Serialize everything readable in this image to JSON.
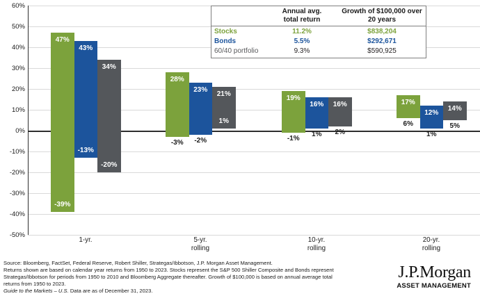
{
  "colors": {
    "stocks_green": "#7CA23C",
    "bonds_blue": "#1C549C",
    "portfolio_gray": "#54575B",
    "gridline": "#D9D9D9",
    "axis_line": "#2E2E2E",
    "bar_label_inside": "#FFFFFF",
    "bar_label_outside": "#1A1A1A"
  },
  "chart_data": {
    "type": "bar",
    "subtype": "floating-range-bars",
    "description": "Range of total returns (max and min) for Stocks, Bonds and a 60/40 portfolio over 1-yr, 5-yr rolling, 10-yr rolling and 20-yr rolling periods, 1950-2023",
    "ylabel": "",
    "xlabel": "",
    "ylim": [
      -50,
      60
    ],
    "grid": true,
    "y_ticks": [
      {
        "v": 60,
        "label": "60%"
      },
      {
        "v": 50,
        "label": "50%"
      },
      {
        "v": 40,
        "label": "40%"
      },
      {
        "v": 30,
        "label": "30%"
      },
      {
        "v": 20,
        "label": "20%"
      },
      {
        "v": 10,
        "label": "10%"
      },
      {
        "v": 0,
        "label": "0%"
      },
      {
        "v": -10,
        "label": "-10%"
      },
      {
        "v": -20,
        "label": "-20%"
      },
      {
        "v": -30,
        "label": "-30%"
      },
      {
        "v": -40,
        "label": "-40%"
      },
      {
        "v": -50,
        "label": "-50%"
      }
    ],
    "categories": [
      {
        "line1": "1-yr.",
        "line2": ""
      },
      {
        "line1": "5-yr.",
        "line2": "rolling"
      },
      {
        "line1": "10-yr.",
        "line2": "rolling"
      },
      {
        "line1": "20-yr.",
        "line2": "rolling"
      }
    ],
    "series": [
      {
        "name": "Stocks",
        "color": "#7CA23C",
        "bars": [
          {
            "max": 47,
            "min": -39,
            "max_label": "47%",
            "min_label": "-39%",
            "min_label_pos": "inside"
          },
          {
            "max": 28,
            "min": -3,
            "max_label": "28%",
            "min_label": "-3%",
            "min_label_pos": "below"
          },
          {
            "max": 19,
            "min": -1,
            "max_label": "19%",
            "min_label": "-1%",
            "min_label_pos": "below"
          },
          {
            "max": 17,
            "min": 6,
            "max_label": "17%",
            "min_label": "6%",
            "min_label_pos": "below"
          }
        ]
      },
      {
        "name": "Bonds",
        "color": "#1C549C",
        "bars": [
          {
            "max": 43,
            "min": -13,
            "max_label": "43%",
            "min_label": "-13%",
            "min_label_pos": "inside"
          },
          {
            "max": 23,
            "min": -2,
            "max_label": "23%",
            "min_label": "-2%",
            "min_label_pos": "below"
          },
          {
            "max": 16,
            "min": 1,
            "max_label": "16%",
            "min_label": "1%",
            "min_label_pos": "below"
          },
          {
            "max": 12,
            "min": 1,
            "max_label": "12%",
            "min_label": "1%",
            "min_label_pos": "below"
          }
        ]
      },
      {
        "name": "60/40 portfolio",
        "color": "#54575B",
        "bars": [
          {
            "max": 34,
            "min": -20,
            "max_label": "34%",
            "min_label": "-20%",
            "min_label_pos": "inside"
          },
          {
            "max": 21,
            "min": 1,
            "max_label": "21%",
            "min_label": "1%",
            "min_label_pos": "inside"
          },
          {
            "max": 16,
            "min": 2,
            "max_label": "16%",
            "min_label": "2%",
            "min_label_pos": "below"
          },
          {
            "max": 14,
            "min": 5,
            "max_label": "14%",
            "min_label": "5%",
            "min_label_pos": "below"
          }
        ]
      }
    ],
    "legend_position": "top-right-table"
  },
  "legend_table": {
    "headers": {
      "col1": "",
      "col2_line1": "Annual avg.",
      "col2_line2": "total return",
      "col3_line1": "Growth of $100,000 over",
      "col3_line2": "20 years"
    },
    "rows": [
      {
        "label": "Stocks",
        "annual_return": "11.2%",
        "growth": "$838,204",
        "label_color": "#7CA23C",
        "value_color": "#7CA23C",
        "bold": true
      },
      {
        "label": "Bonds",
        "annual_return": "5.5%",
        "growth": "$292,671",
        "label_color": "#1C549C",
        "value_color": "#1C549C",
        "bold": true
      },
      {
        "label": "60/40 portfolio",
        "annual_return": "9.3%",
        "growth": "$590,925",
        "label_color": "#58595B",
        "value_color": "#231F20",
        "bold": false
      }
    ]
  },
  "footer": {
    "source_line": "Source: Bloomberg, FactSet, Federal Reserve, Robert Shiller, Strategas/Ibbotson, J.P. Morgan Asset Management.",
    "note_lines": [
      "Returns shown are based on calendar year returns from 1950 to 2023. Stocks represent the S&P 500 Shiller Composite and Bonds represent",
      "Strategas/Ibbotson for periods from 1950 to 2010 and Bloomberg Aggregate thereafter. Growth of $100,000 is based on annual average total",
      "returns from 1950 to 2023."
    ],
    "gtm_italic": "Guide to the Markets – U.S.",
    "gtm_rest": " Data are as of December 31, 2023."
  },
  "logo": {
    "brand": "J.P.Morgan",
    "division": "ASSET MANAGEMENT"
  }
}
